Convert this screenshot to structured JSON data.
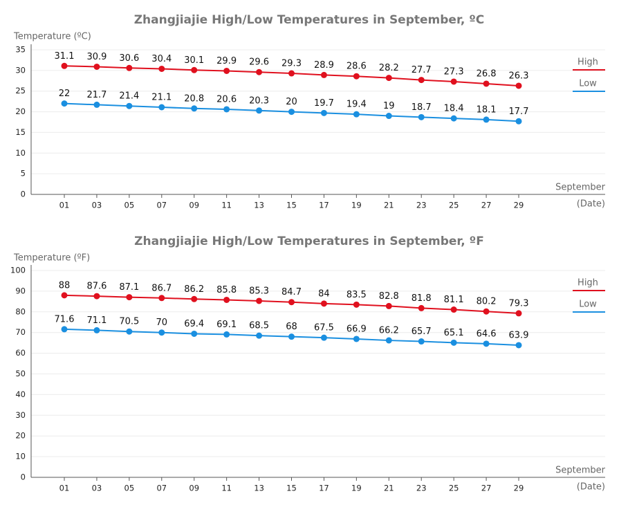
{
  "chart_data": [
    {
      "type": "line",
      "title": "Zhangjiajie High/Low Temperatures in September, ºC",
      "ylabel": "Temperature (ºC)",
      "xlabel": "September",
      "xunit": "(Date)",
      "categories": [
        "01",
        "03",
        "05",
        "07",
        "09",
        "11",
        "13",
        "15",
        "17",
        "19",
        "21",
        "23",
        "25",
        "27",
        "29"
      ],
      "series": [
        {
          "name": "High",
          "color": "#e0101e",
          "values": [
            31.1,
            30.9,
            30.6,
            30.4,
            30.1,
            29.9,
            29.6,
            29.3,
            28.9,
            28.6,
            28.2,
            27.7,
            27.3,
            26.8,
            26.3
          ]
        },
        {
          "name": "Low",
          "color": "#1a8fe0",
          "values": [
            22,
            21.7,
            21.4,
            21.1,
            20.8,
            20.6,
            20.3,
            20,
            19.7,
            19.4,
            19,
            18.7,
            18.4,
            18.1,
            17.7
          ]
        }
      ],
      "ylim": [
        0,
        35
      ],
      "yticks": [
        0,
        5,
        10,
        15,
        20,
        25,
        30,
        35
      ],
      "grid": true
    },
    {
      "type": "line",
      "title": "Zhangjiajie High/Low Temperatures in September, ºF",
      "ylabel": "Temperature (ºF)",
      "xlabel": "September",
      "xunit": "(Date)",
      "categories": [
        "01",
        "03",
        "05",
        "07",
        "09",
        "11",
        "13",
        "15",
        "17",
        "19",
        "21",
        "23",
        "25",
        "27",
        "29"
      ],
      "series": [
        {
          "name": "High",
          "color": "#e0101e",
          "values": [
            88,
            87.6,
            87.1,
            86.7,
            86.2,
            85.8,
            85.3,
            84.7,
            84,
            83.5,
            82.8,
            81.8,
            81.1,
            80.2,
            79.3
          ]
        },
        {
          "name": "Low",
          "color": "#1a8fe0",
          "values": [
            71.6,
            71.1,
            70.5,
            70,
            69.4,
            69.1,
            68.5,
            68,
            67.5,
            66.9,
            66.2,
            65.7,
            65.1,
            64.6,
            63.9
          ]
        }
      ],
      "ylim": [
        0,
        100
      ],
      "yticks": [
        0,
        10,
        20,
        30,
        40,
        50,
        60,
        70,
        80,
        90,
        100
      ],
      "grid": true
    }
  ]
}
